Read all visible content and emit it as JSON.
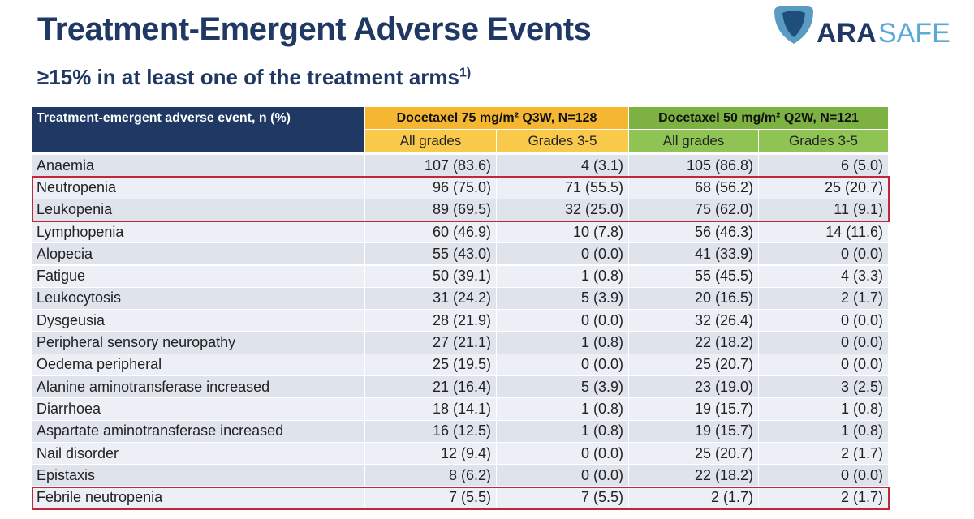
{
  "header": {
    "title": "Treatment-Emergent Adverse Events",
    "subtitle": "≥15% in at least one of the treatment arms",
    "subtitle_note": "1)"
  },
  "logo": {
    "part1": "ARA",
    "part2": "SAFE"
  },
  "table": {
    "corner": "Treatment-emergent adverse event, n (%)",
    "groups": [
      "Docetaxel 75 mg/m² Q3W, N=128",
      "Docetaxel 50 mg/m² Q2W, N=121"
    ],
    "subheaders": [
      "All grades",
      "Grades 3-5",
      "All grades",
      "Grades 3-5"
    ],
    "rows": [
      [
        "Anaemia",
        "107 (83.6)",
        "4 (3.1)",
        "105 (86.8)",
        "6 (5.0)"
      ],
      [
        "Neutropenia",
        "96 (75.0)",
        "71 (55.5)",
        "68 (56.2)",
        "25 (20.7)"
      ],
      [
        "Leukopenia",
        "89 (69.5)",
        "32 (25.0)",
        "75 (62.0)",
        "11 (9.1)"
      ],
      [
        "Lymphopenia",
        "60 (46.9)",
        "10 (7.8)",
        "56 (46.3)",
        "14 (11.6)"
      ],
      [
        "Alopecia",
        "55 (43.0)",
        "0 (0.0)",
        "41 (33.9)",
        "0 (0.0)"
      ],
      [
        "Fatigue",
        "50 (39.1)",
        "1 (0.8)",
        "55 (45.5)",
        "4 (3.3)"
      ],
      [
        "Leukocytosis",
        "31 (24.2)",
        "5 (3.9)",
        "20 (16.5)",
        "2 (1.7)"
      ],
      [
        "Dysgeusia",
        "28 (21.9)",
        "0 (0.0)",
        "32 (26.4)",
        "0 (0.0)"
      ],
      [
        "Peripheral sensory neuropathy",
        "27 (21.1)",
        "1 (0.8)",
        "22 (18.2)",
        "0 (0.0)"
      ],
      [
        "Oedema peripheral",
        "25 (19.5)",
        "0 (0.0)",
        "25 (20.7)",
        "0 (0.0)"
      ],
      [
        "Alanine aminotransferase increased",
        "21 (16.4)",
        "5 (3.9)",
        "23 (19.0)",
        "3 (2.5)"
      ],
      [
        "Diarrhoea",
        "18 (14.1)",
        "1 (0.8)",
        "19 (15.7)",
        "1 (0.8)"
      ],
      [
        "Aspartate aminotransferase increased",
        "16 (12.5)",
        "1 (0.8)",
        "19 (15.7)",
        "1 (0.8)"
      ],
      [
        "Nail disorder",
        "12 (9.4)",
        "0 (0.0)",
        "25 (20.7)",
        "2 (1.7)"
      ],
      [
        "Epistaxis",
        "8 (6.2)",
        "0 (0.0)",
        "22 (18.2)",
        "0 (0.0)"
      ],
      [
        "Febrile neutropenia",
        "7 (5.5)",
        "7 (5.5)",
        "2 (1.7)",
        "2 (1.7)"
      ]
    ]
  }
}
